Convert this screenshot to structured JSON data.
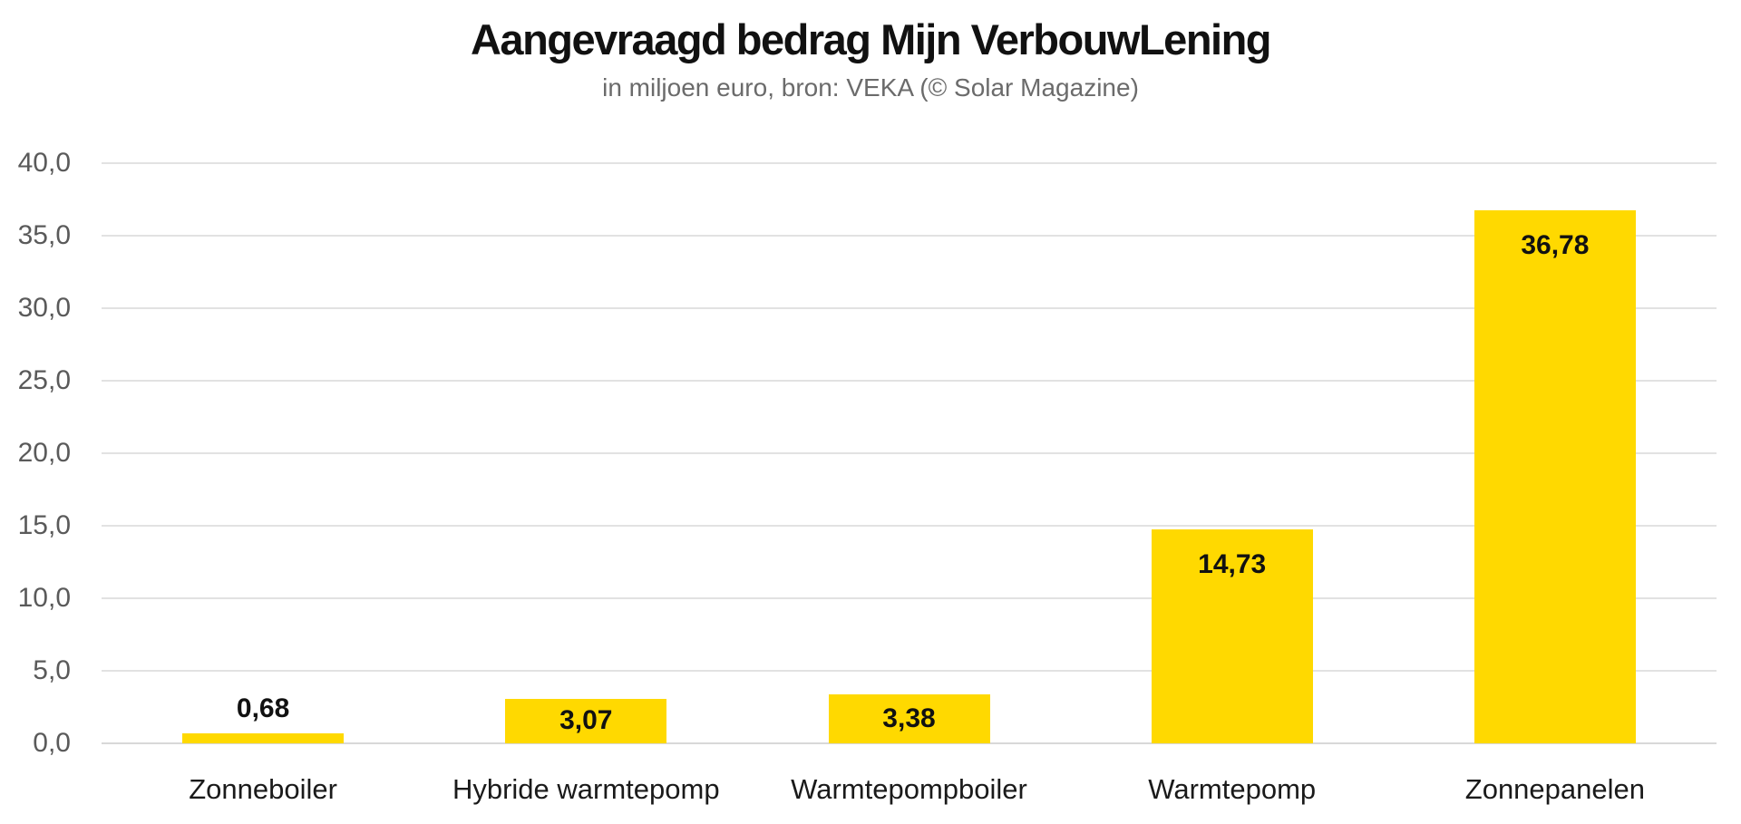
{
  "chart_data": {
    "type": "bar",
    "title": "Aangevraagd bedrag Mijn VerbouwLening",
    "subtitle": "in miljoen euro, bron: VEKA (© Solar Magazine)",
    "categories": [
      "Zonneboiler",
      "Hybride warmtepomp",
      "Warmtepompboiler",
      "Warmtepomp",
      "Zonnepanelen"
    ],
    "values": [
      0.68,
      3.07,
      3.38,
      14.73,
      36.78
    ],
    "value_labels": [
      "0,68",
      "3,07",
      "3,38",
      "14,73",
      "36,78"
    ],
    "xlabel": "",
    "ylabel": "",
    "ylim": [
      0,
      40
    ],
    "y_step": 5,
    "yticks": [
      {
        "value": 0,
        "label": "0,0"
      },
      {
        "value": 5,
        "label": "5,0"
      },
      {
        "value": 10,
        "label": "10,0"
      },
      {
        "value": 15,
        "label": "15,0"
      },
      {
        "value": 20,
        "label": "20,0"
      },
      {
        "value": 25,
        "label": "25,0"
      },
      {
        "value": 30,
        "label": "30,0"
      },
      {
        "value": 35,
        "label": "35,0"
      },
      {
        "value": 40,
        "label": "40,0"
      }
    ],
    "grid": true,
    "legend": "none",
    "bar_color": "#FFD900",
    "gridline_color": "#e2e2e2",
    "title_color": "#111111",
    "subtitle_color": "#6b6b6b",
    "tick_label_color": "#5a5a5a",
    "category_label_color": "#1a1a1a",
    "value_label_color": "#111111",
    "background_color": "#ffffff"
  }
}
